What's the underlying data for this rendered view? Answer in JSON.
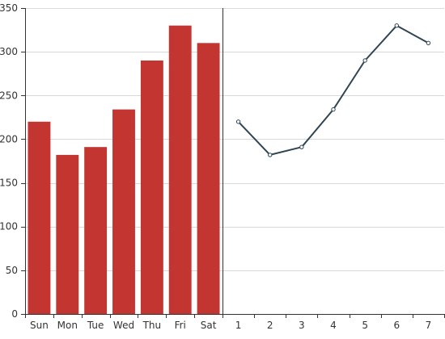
{
  "chart_data": [
    {
      "type": "bar",
      "categories": [
        "Sun",
        "Mon",
        "Tue",
        "Wed",
        "Thu",
        "Fri",
        "Sat"
      ],
      "values": [
        220,
        182,
        191,
        234,
        290,
        330,
        310
      ],
      "title": "",
      "xlabel": "",
      "ylabel": "",
      "ylim": [
        0,
        350
      ],
      "yticks": [
        0,
        50,
        100,
        150,
        200,
        250,
        300,
        350
      ],
      "grid": true,
      "color": "#c23531"
    },
    {
      "type": "line",
      "x": [
        1,
        2,
        3,
        4,
        5,
        6,
        7
      ],
      "values": [
        220,
        182,
        191,
        234,
        290,
        330,
        310
      ],
      "title": "",
      "xlabel": "",
      "ylabel": "",
      "ylim": [
        0,
        350
      ],
      "grid": true,
      "color": "#2f4554"
    }
  ]
}
